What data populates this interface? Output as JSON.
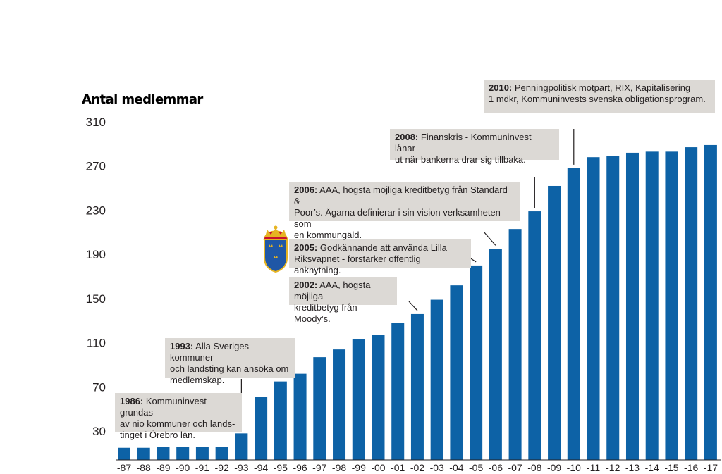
{
  "chart_data": {
    "type": "bar",
    "ylabel": "Antal medlemmar",
    "xlabel": "",
    "ylim": [
      4,
      320
    ],
    "yticks": [
      30,
      70,
      110,
      150,
      190,
      230,
      270,
      310
    ],
    "categories": [
      "-87",
      "-88",
      "-89",
      "-90",
      "-91",
      "-92",
      "-93",
      "-94",
      "-95",
      "-96",
      "-97",
      "-98",
      "-99",
      "-00",
      "-01",
      "-02",
      "-03",
      "-04",
      "-05",
      "-06",
      "-07",
      "-08",
      "-09",
      "-10",
      "-11",
      "-12",
      "-13",
      "-14",
      "-15",
      "-16",
      "-17"
    ],
    "values": [
      15,
      15,
      16,
      16,
      16,
      16,
      28,
      61,
      75,
      82,
      97,
      104,
      113,
      117,
      128,
      136,
      149,
      162,
      180,
      195,
      213,
      229,
      252,
      268,
      278,
      279,
      282,
      283,
      283,
      287,
      289
    ],
    "color": "#0d62a6",
    "annotations": [
      {
        "year": "1986:",
        "text": "Kommuninvest grundas av nio kommuner och lands-tinget i Örebro län.",
        "lines": [
          "Kommuninvest grundas",
          "av nio kommuner och lands-",
          "tinget i Örebro län."
        ]
      },
      {
        "year": "1993:",
        "text": "Alla Sveriges kommuner och landsting kan ansöka om medlemskap.",
        "lines": [
          "Alla Sveriges kommuner",
          "och landsting kan ansöka om",
          "medlemskap."
        ]
      },
      {
        "year": "2002:",
        "text": "AAA, högsta möjliga kreditbetyg från Moody’s.",
        "lines": [
          "AAA, högsta möjliga",
          "kreditbetyg från Moody’s."
        ]
      },
      {
        "year": "2005:",
        "text": "Godkännande att använda Lilla Riksvapnet - förstärker offentlig anknytning.",
        "lines": [
          "Godkännande att använda Lilla",
          "Riksvapnet - förstärker offentlig anknytning."
        ]
      },
      {
        "year": "2006:",
        "text": "AAA, högsta möjliga kreditbetyg från Standard & Poor’s. Ägarna definierar i sin vision verksamheten som en kommungäld.",
        "lines": [
          "AAA, högsta möjliga kreditbetyg från Standard &",
          "Poor’s. Ägarna definierar i sin vision verksamheten som",
          "en kommungäld."
        ]
      },
      {
        "year": "2008:",
        "text": "Finanskris - Kommuninvest lånar ut när bankerna drar sig tillbaka.",
        "lines": [
          "Finanskris - Kommuninvest lånar",
          "ut när bankerna drar sig tillbaka."
        ]
      },
      {
        "year": "2010:",
        "text": "Penningpolitisk motpart, RIX, Kapitalisering 1 mdkr, Kommuninvests svenska obligationsprogram.",
        "lines": [
          "Penningpolitisk motpart, RIX, Kapitalisering",
          "1 mdkr, Kommuninvests svenska obligationsprogram."
        ]
      }
    ]
  },
  "emblem": {
    "name": "crest-icon",
    "colors": [
      "#1f57a6",
      "#e6b422",
      "#c8102e"
    ]
  }
}
